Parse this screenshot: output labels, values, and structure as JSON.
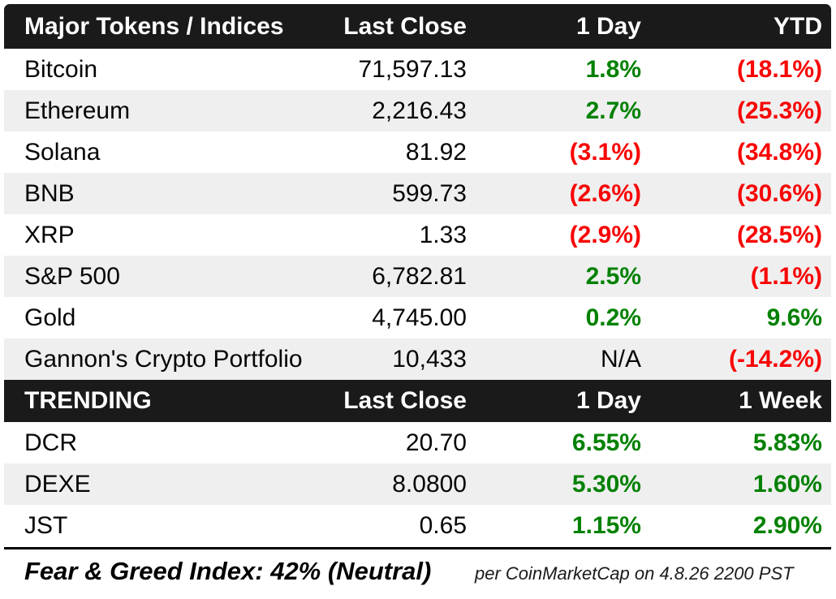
{
  "colors": {
    "header_bg": "#1a1a1a",
    "alt_row_bg": "#efefef",
    "positive": "#028102",
    "negative": "#f90505",
    "text": "#060606"
  },
  "chart_data": [
    {
      "type": "table",
      "title": "Major Tokens / Indices",
      "columns": [
        "Major Tokens / Indices",
        "Last Close",
        "1 Day",
        "YTD"
      ],
      "rows": [
        {
          "name": "Bitcoin",
          "last_close": "71,597.13",
          "one_day": "1.8%",
          "one_day_class": "pos",
          "period": "(18.1%)",
          "period_class": "neg"
        },
        {
          "name": "Ethereum",
          "last_close": "2,216.43",
          "one_day": "2.7%",
          "one_day_class": "pos",
          "period": "(25.3%)",
          "period_class": "neg"
        },
        {
          "name": "Solana",
          "last_close": "81.92",
          "one_day": "(3.1%)",
          "one_day_class": "neg",
          "period": "(34.8%)",
          "period_class": "neg"
        },
        {
          "name": "BNB",
          "last_close": "599.73",
          "one_day": "(2.6%)",
          "one_day_class": "neg",
          "period": "(30.6%)",
          "period_class": "neg"
        },
        {
          "name": "XRP",
          "last_close": "1.33",
          "one_day": "(2.9%)",
          "one_day_class": "neg",
          "period": "(28.5%)",
          "period_class": "neg"
        },
        {
          "name": "S&P 500",
          "last_close": "6,782.81",
          "one_day": "2.5%",
          "one_day_class": "pos",
          "period": "(1.1%)",
          "period_class": "neg"
        },
        {
          "name": "Gold",
          "last_close": "4,745.00",
          "one_day": "0.2%",
          "one_day_class": "pos",
          "period": "9.6%",
          "period_class": "pos"
        },
        {
          "name": "Gannon's Crypto Portfolio",
          "last_close": "10,433",
          "one_day": "N/A",
          "one_day_class": "na",
          "period": "(-14.2%)",
          "period_class": "neg"
        }
      ]
    },
    {
      "type": "table",
      "title": "TRENDING",
      "columns": [
        "TRENDING",
        "Last Close",
        "1 Day",
        "1 Week"
      ],
      "rows": [
        {
          "name": "DCR",
          "last_close": "20.70",
          "one_day": "6.55%",
          "one_day_class": "pos",
          "period": "5.83%",
          "period_class": "pos"
        },
        {
          "name": "DEXE",
          "last_close": "8.0800",
          "one_day": "5.30%",
          "one_day_class": "pos",
          "period": "1.60%",
          "period_class": "pos"
        },
        {
          "name": "JST",
          "last_close": "0.65",
          "one_day": "1.15%",
          "one_day_class": "pos",
          "period": "2.90%",
          "period_class": "pos"
        }
      ]
    }
  ],
  "footer": {
    "fear_greed": "Fear & Greed Index: 42% (Neutral)",
    "attribution": "per CoinMarketCap on 4.8.26 2200 PST"
  }
}
